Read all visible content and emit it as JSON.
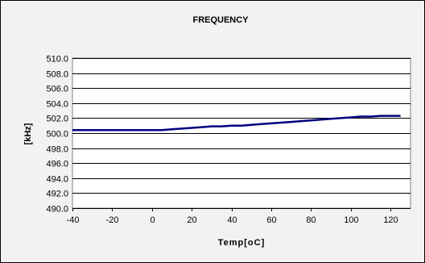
{
  "chart_data": {
    "type": "line",
    "title": "FREQUENCY",
    "xlabel": "Temp[oC]",
    "ylabel": "[kHz]",
    "xlim": [
      -40,
      130
    ],
    "ylim": [
      490.0,
      510.0
    ],
    "xticks": [
      -40,
      -20,
      0,
      20,
      40,
      60,
      80,
      100,
      120
    ],
    "xtick_labels": [
      "-40",
      "-20",
      "0",
      "20",
      "40",
      "60",
      "80",
      "100",
      "120"
    ],
    "yticks": [
      490.0,
      492.0,
      494.0,
      496.0,
      498.0,
      500.0,
      502.0,
      504.0,
      506.0,
      508.0,
      510.0
    ],
    "ytick_labels": [
      "490.0",
      "492.0",
      "494.0",
      "496.0",
      "498.0",
      "500.0",
      "502.0",
      "504.0",
      "506.0",
      "508.0",
      "510.0"
    ],
    "grid": true,
    "legend": "none",
    "series": [
      {
        "color": "#000080",
        "x": [
          -40,
          -30,
          -20,
          -10,
          0,
          5,
          10,
          15,
          20,
          25,
          30,
          35,
          40,
          45,
          50,
          55,
          60,
          65,
          70,
          75,
          80,
          85,
          90,
          95,
          100,
          105,
          110,
          115,
          120,
          125
        ],
        "y": [
          500.4,
          500.4,
          500.4,
          500.4,
          500.4,
          500.4,
          500.5,
          500.6,
          500.7,
          500.8,
          500.9,
          500.9,
          501.0,
          501.0,
          501.1,
          501.2,
          501.3,
          501.4,
          501.5,
          501.6,
          501.7,
          501.8,
          501.9,
          502.0,
          502.1,
          502.2,
          502.2,
          502.3,
          502.3,
          502.3
        ]
      }
    ],
    "colors": {
      "plot_background": "#ffffff",
      "chart_background": "#f2f2f2",
      "gridline": "#000000"
    }
  }
}
